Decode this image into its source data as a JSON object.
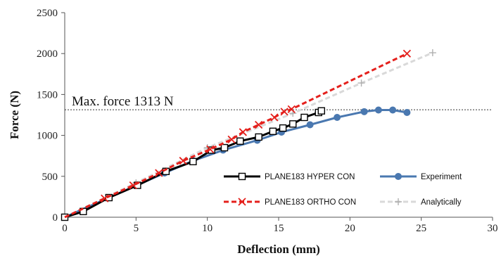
{
  "chart_data": {
    "type": "line",
    "title": "",
    "xlabel": "Deflection (mm)",
    "ylabel": "Force (N)",
    "xlim": [
      0,
      30
    ],
    "ylim": [
      0,
      2500
    ],
    "xticks": [
      "0",
      "5",
      "10",
      "15",
      "20",
      "25",
      "30"
    ],
    "yticks": [
      "0",
      "500",
      "1000",
      "1500",
      "2000",
      "2500"
    ],
    "grid": false,
    "legend_position": "bottom-right",
    "annotation": {
      "text": "Max. force 1313 N",
      "y": 1313
    },
    "series": [
      {
        "name": "PLANE183 HYPER CON",
        "color": "#000000",
        "marker": "square",
        "points": [
          [
            0,
            0
          ],
          [
            1.3,
            70
          ],
          [
            3.1,
            240
          ],
          [
            5.1,
            390
          ],
          [
            7.1,
            560
          ],
          [
            9,
            680
          ],
          [
            10.3,
            820
          ],
          [
            11.2,
            850
          ],
          [
            12.3,
            930
          ],
          [
            13.6,
            980
          ],
          [
            14.6,
            1050
          ],
          [
            15.3,
            1090
          ],
          [
            16,
            1140
          ],
          [
            16.8,
            1220
          ],
          [
            17.8,
            1280
          ],
          [
            18,
            1300
          ]
        ]
      },
      {
        "name": "PLANE183 ORTHO CON",
        "color": "#e4201c",
        "marker": "x",
        "points": [
          [
            0,
            0
          ],
          [
            2.8,
            230
          ],
          [
            4.8,
            390
          ],
          [
            6.6,
            540
          ],
          [
            8.3,
            690
          ],
          [
            10.2,
            830
          ],
          [
            11.7,
            950
          ],
          [
            12.5,
            1040
          ],
          [
            13.6,
            1130
          ],
          [
            14.7,
            1220
          ],
          [
            15.4,
            1290
          ],
          [
            15.9,
            1320
          ],
          [
            24,
            2000
          ]
        ]
      },
      {
        "name": "Experiment",
        "color": "#4a78b0",
        "marker": "circle",
        "points": [
          [
            0,
            0
          ],
          [
            7,
            540
          ],
          [
            9,
            690
          ],
          [
            11.1,
            820
          ],
          [
            13.5,
            940
          ],
          [
            15.2,
            1040
          ],
          [
            17.2,
            1130
          ],
          [
            19.1,
            1220
          ],
          [
            21,
            1290
          ],
          [
            22,
            1310
          ],
          [
            23,
            1310
          ],
          [
            24,
            1280
          ]
        ]
      },
      {
        "name": "Analytically",
        "color": "#d9d9d9",
        "marker": "plus",
        "points": [
          [
            0,
            0
          ],
          [
            5,
            420
          ],
          [
            10,
            850
          ],
          [
            16,
            1270
          ],
          [
            20.8,
            1640
          ],
          [
            25.8,
            2010
          ]
        ]
      }
    ]
  }
}
